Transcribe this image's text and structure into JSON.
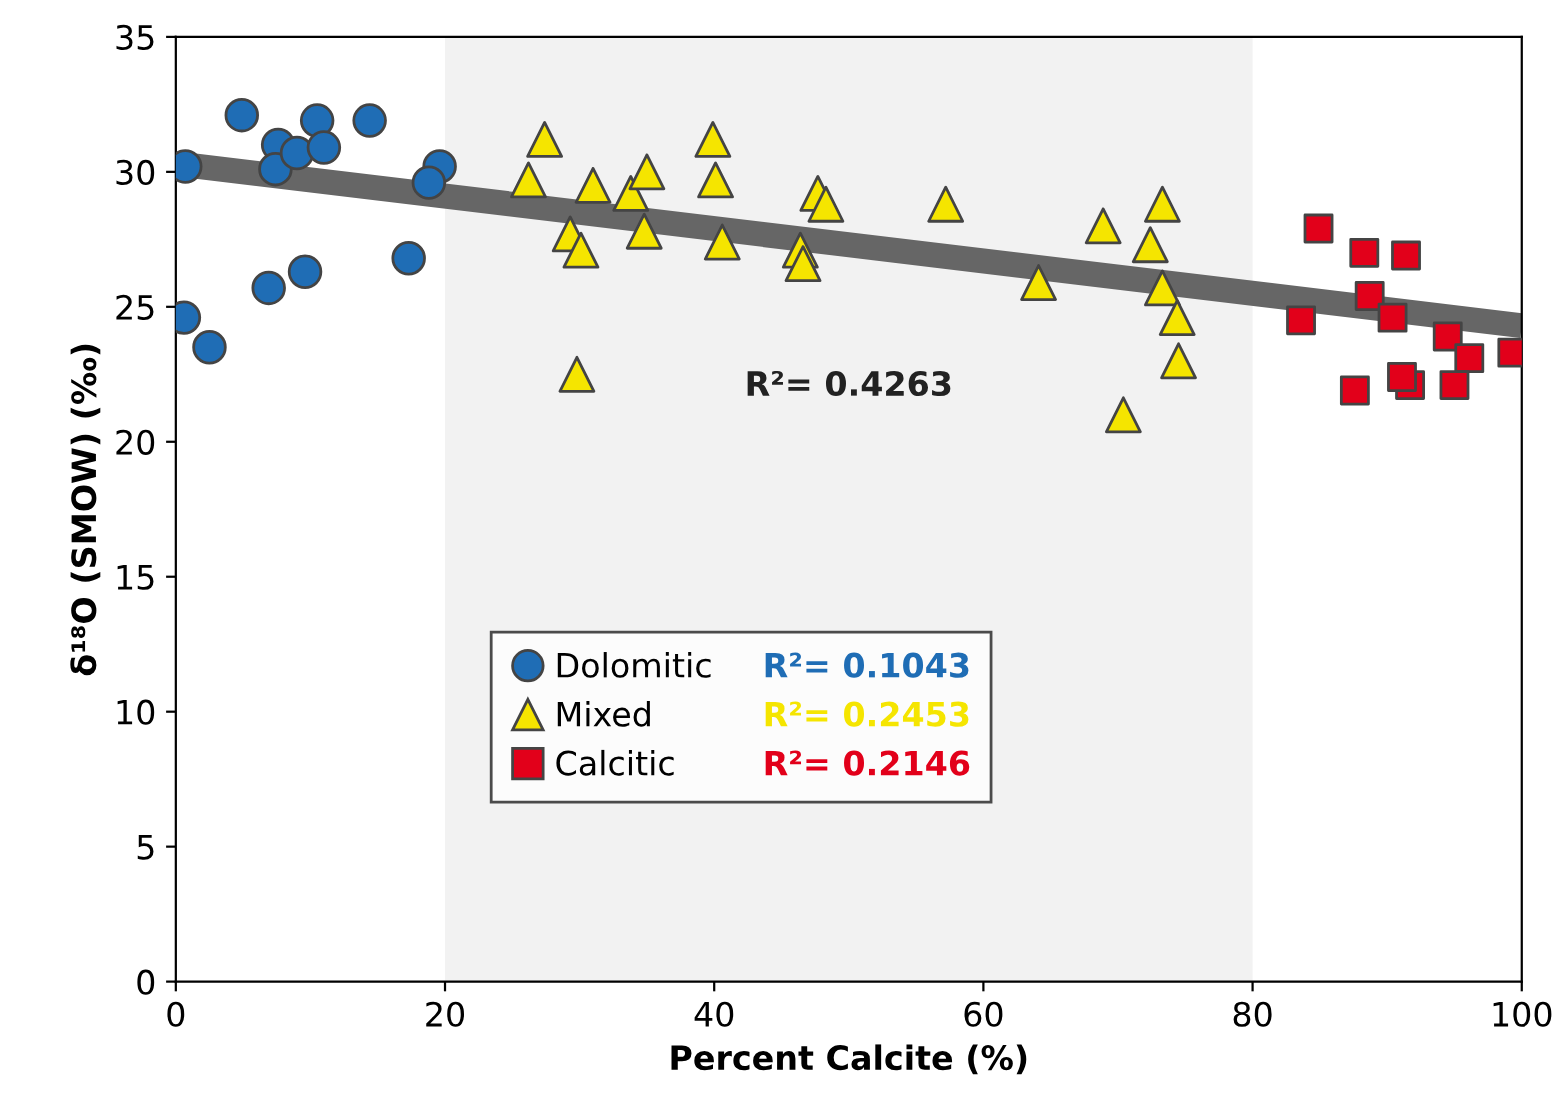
{
  "chart_data": {
    "type": "scatter",
    "xlabel": "Percent Calcite (%)",
    "ylabel": "δ¹⁸O (SMOW) (‰)",
    "xlim": [
      0,
      100
    ],
    "ylim": [
      0,
      35
    ],
    "xticks": [
      0,
      20,
      40,
      60,
      80,
      100
    ],
    "yticks": [
      0,
      5,
      10,
      15,
      20,
      25,
      30,
      35
    ],
    "grid": false,
    "legend": "center",
    "bands": [
      {
        "axis": "x",
        "from": 20,
        "to": 80,
        "label": null,
        "color": "#f2f2f2"
      }
    ],
    "series": [
      {
        "name": "Dolomitic",
        "color": "#1f6db5",
        "marker": "circle",
        "x": [
          4.9,
          0.7,
          7.6,
          7.4,
          9.0,
          10.5,
          11.0,
          14.4,
          19.6,
          18.8,
          17.3,
          9.6,
          6.9,
          0.6,
          2.5
        ],
        "values": [
          32.1,
          30.2,
          31.0,
          30.1,
          30.7,
          31.9,
          30.9,
          31.9,
          30.2,
          29.6,
          26.8,
          26.3,
          25.7,
          24.6,
          23.5
        ]
      },
      {
        "name": "Mixed",
        "color": "#f5e500",
        "marker": "triangle",
        "x": [
          27.4,
          26.2,
          31.0,
          33.8,
          35.0,
          29.3,
          30.1,
          34.8,
          29.8,
          39.9,
          40.1,
          47.7,
          48.3,
          57.2,
          40.6,
          46.4,
          46.6,
          64.1,
          68.9,
          73.3,
          72.4,
          73.3,
          74.4,
          74.5,
          70.4
        ],
        "values": [
          31.2,
          29.7,
          29.5,
          29.2,
          30.0,
          27.7,
          27.1,
          27.8,
          22.5,
          31.2,
          29.7,
          29.2,
          28.8,
          28.8,
          27.4,
          27.1,
          26.6,
          25.9,
          28.0,
          28.8,
          27.3,
          25.7,
          24.6,
          23.0,
          21.0
        ]
      },
      {
        "name": "Calcitic",
        "color": "#e2001a",
        "marker": "square",
        "x": [
          84.9,
          88.3,
          91.4,
          88.7,
          83.6,
          90.4,
          94.5,
          96.1,
          99.3,
          87.6,
          91.7,
          91.1,
          95.0
        ],
        "values": [
          27.9,
          27.0,
          26.9,
          25.4,
          24.5,
          24.6,
          23.9,
          23.1,
          23.3,
          21.9,
          22.1,
          22.4,
          22.1
        ]
      },
      {
        "type": "line",
        "color": "#666666",
        "x": [
          0,
          100
        ],
        "values": [
          30.3,
          24.3
        ]
      }
    ],
    "annotations": [
      "R²= 0.4263",
      "R²= 0.1043",
      "R²= 0.2453",
      "R²= 0.2146"
    ]
  }
}
